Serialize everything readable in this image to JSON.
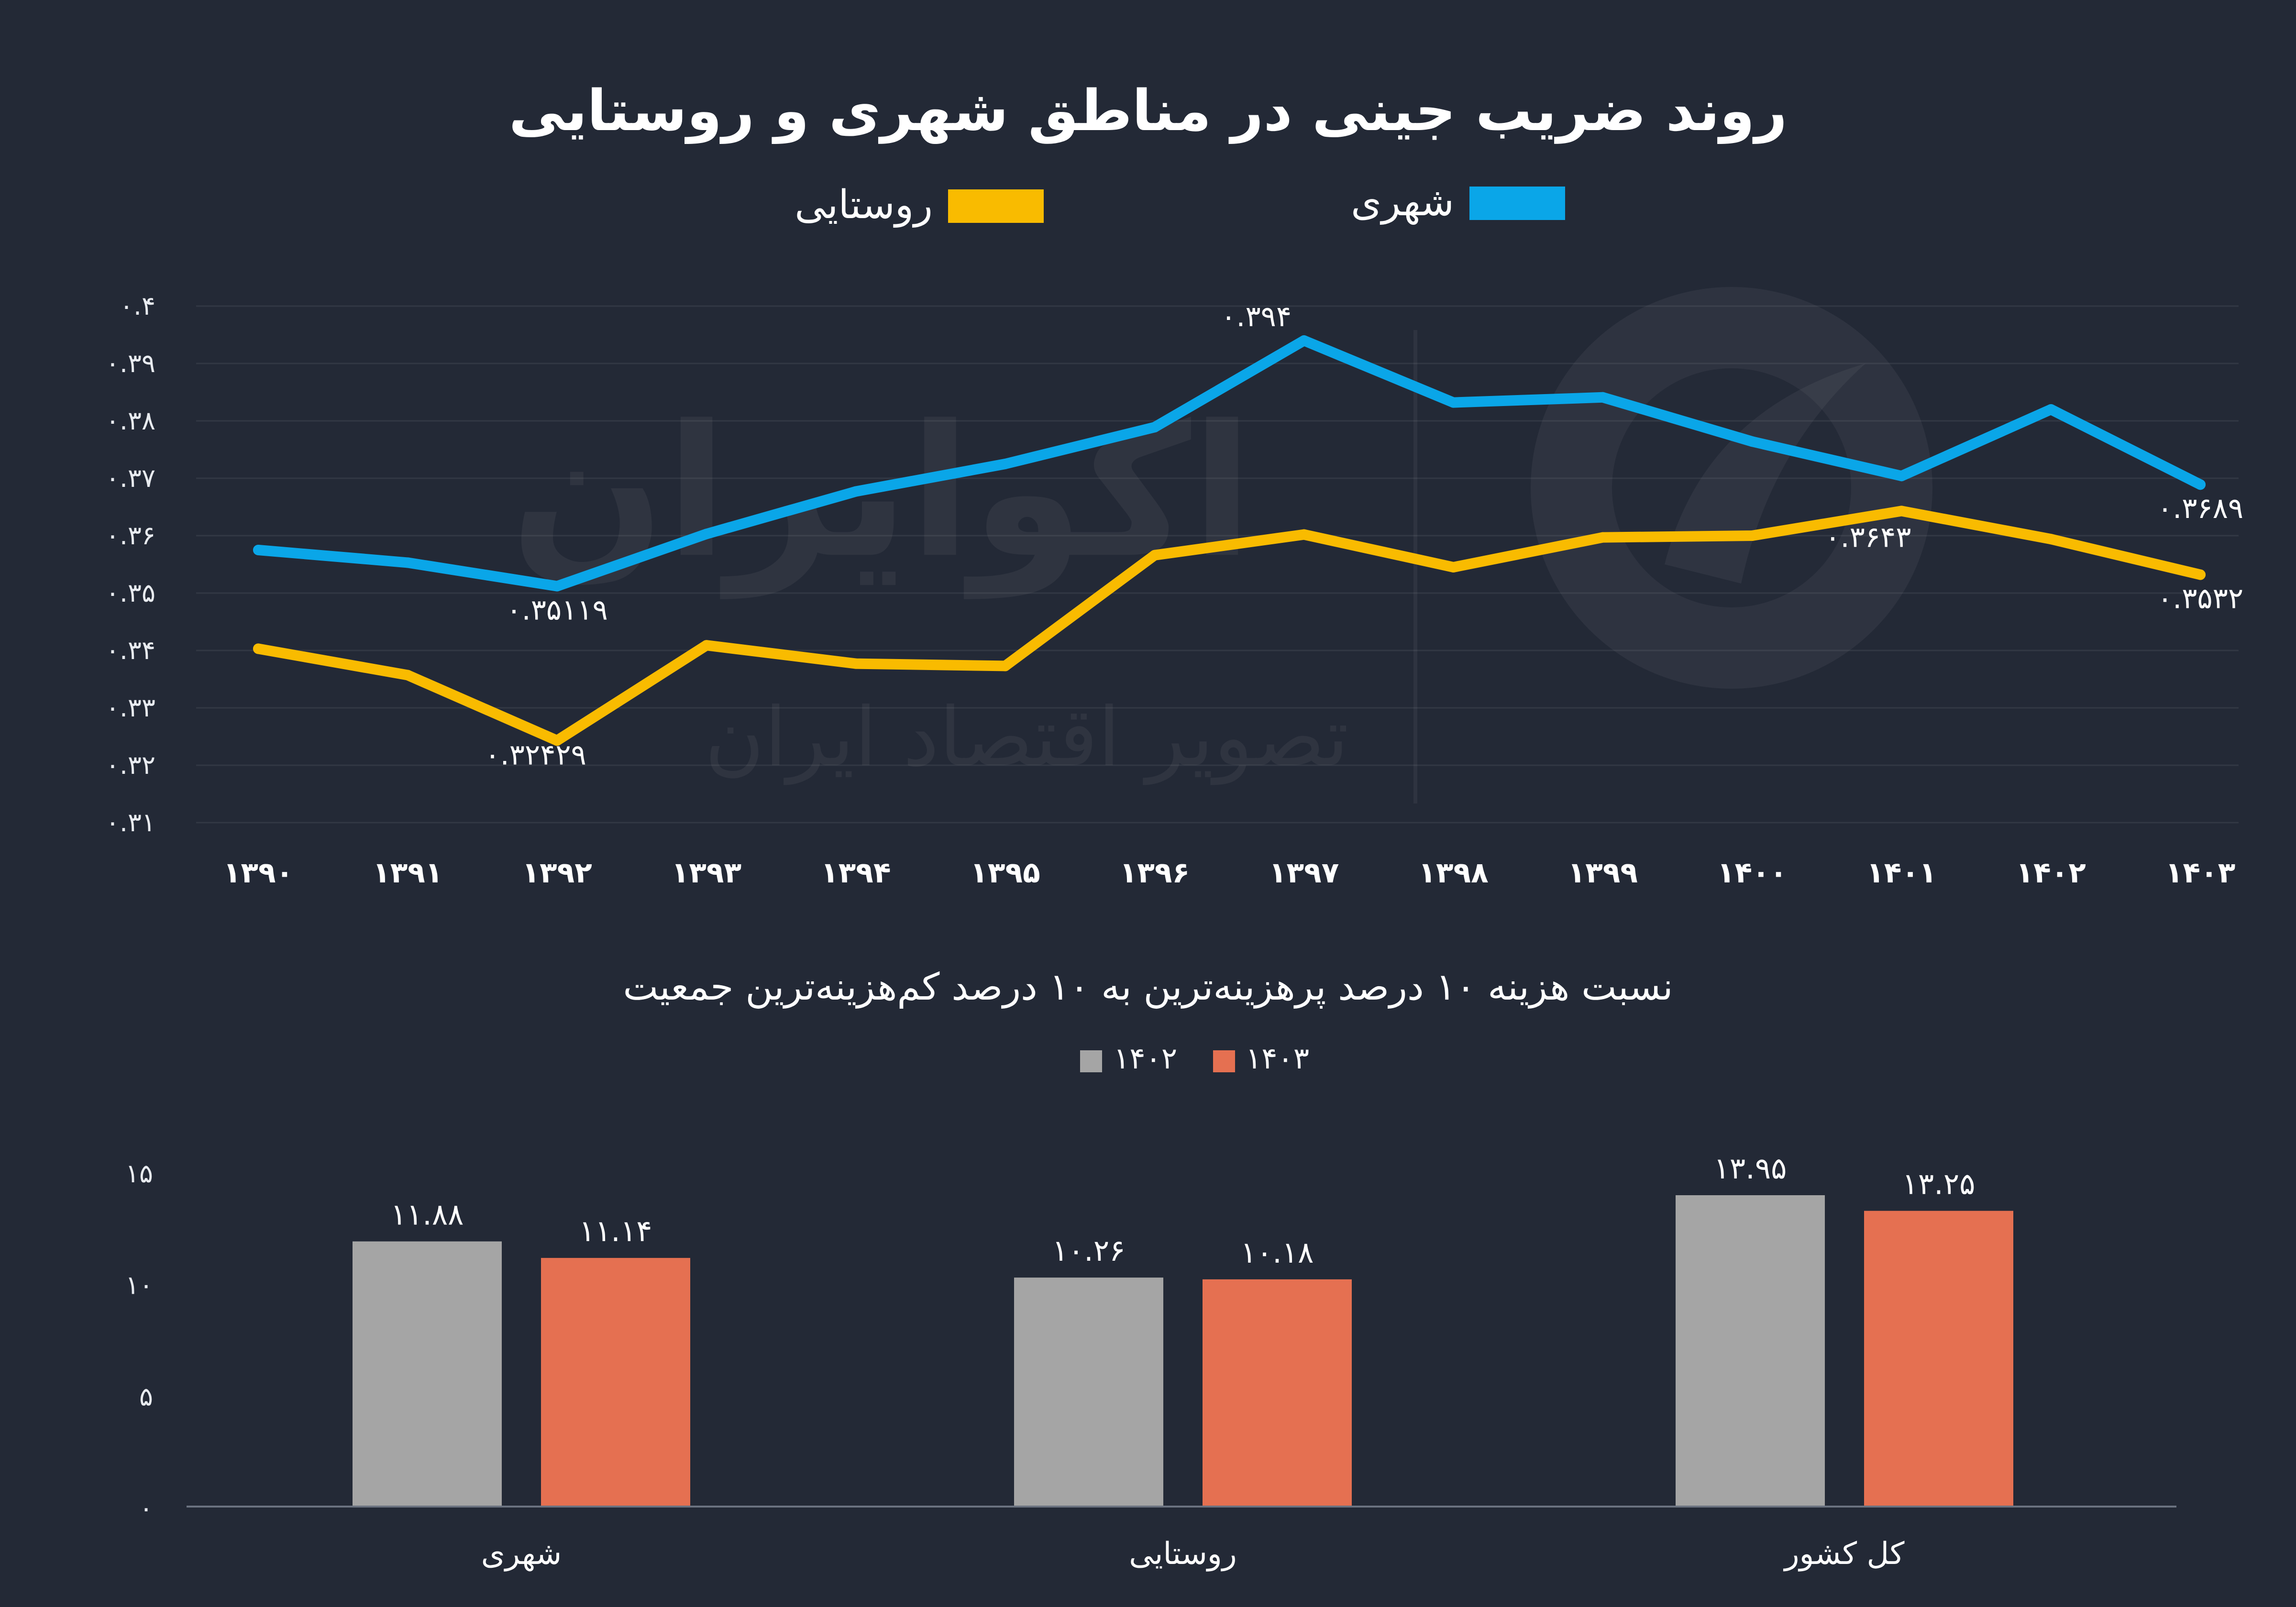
{
  "line_legend": {
    "urban_label": "شهری",
    "rural_label": "روستایی"
  },
  "bar_legend": {
    "y1402_label": "۱۴۰۲",
    "y1403_label": "۱۴۰۳"
  },
  "watermark": {
    "brand": "اکوایران",
    "tagline": "تصویر اقتصاد ایران"
  },
  "chart_data": [
    {
      "type": "line",
      "title": "روند ضریب جینی در مناطق شهری و روستایی",
      "categories": [
        "۱۳۹۰",
        "۱۳۹۱",
        "۱۳۹۲",
        "۱۳۹۳",
        "۱۳۹۴",
        "۱۳۹۵",
        "۱۳۹۶",
        "۱۳۹۷",
        "۱۳۹۸",
        "۱۳۹۹",
        "۱۴۰۰",
        "۱۴۰۱",
        "۱۴۰۲",
        "۱۴۰۳"
      ],
      "series": [
        {
          "name": "شهری",
          "color": "#0aa6e8",
          "values": [
            0.3575,
            0.3553,
            0.3512,
            0.3603,
            0.3677,
            0.3725,
            0.3789,
            0.394,
            0.3832,
            0.3841,
            0.3764,
            0.3704,
            0.382,
            0.3689
          ]
        },
        {
          "name": "روستایی",
          "color": "#f9bb00",
          "values": [
            0.3403,
            0.3357,
            0.3243,
            0.3409,
            0.3377,
            0.3373,
            0.3566,
            0.3602,
            0.3545,
            0.3597,
            0.36,
            0.3643,
            0.3594,
            0.3532
          ]
        }
      ],
      "annotations": [
        {
          "series": 0,
          "index": 2,
          "text": "۰.۳۵۱۱۹"
        },
        {
          "series": 0,
          "index": 7,
          "text": "۰.۳۹۴"
        },
        {
          "series": 0,
          "index": 13,
          "text": "۰.۳۶۸۹"
        },
        {
          "series": 1,
          "index": 2,
          "text": "۰.۳۲۴۲۹"
        },
        {
          "series": 1,
          "index": 11,
          "text": "۰.۳۶۴۳"
        },
        {
          "series": 1,
          "index": 13,
          "text": "۰.۳۵۳۲"
        }
      ],
      "ylim": [
        0.31,
        0.4
      ],
      "yticks": [
        {
          "value": 0.4,
          "label": "۰.۴"
        },
        {
          "value": 0.39,
          "label": "۰.۳۹"
        },
        {
          "value": 0.38,
          "label": "۰.۳۸"
        },
        {
          "value": 0.37,
          "label": "۰.۳۷"
        },
        {
          "value": 0.36,
          "label": "۰.۳۶"
        },
        {
          "value": 0.35,
          "label": "۰.۳۵"
        },
        {
          "value": 0.34,
          "label": "۰.۳۴"
        },
        {
          "value": 0.33,
          "label": "۰.۳۳"
        },
        {
          "value": 0.32,
          "label": "۰.۳۲"
        },
        {
          "value": 0.31,
          "label": "۰.۳۱"
        }
      ],
      "grid": true,
      "legend": "top-center"
    },
    {
      "type": "bar",
      "title": "نسبت هزینه ۱۰ درصد پرهزینه‌ترین به ۱۰ درصد کم‌هزینه‌ترین جمعیت",
      "categories": [
        "شهری",
        "روستایی",
        "کل کشور"
      ],
      "series": [
        {
          "name": "۱۴۰۲",
          "color": "#a5a5a5",
          "values": [
            11.88,
            10.26,
            13.95
          ],
          "labels": [
            "۱۱.۸۸",
            "۱۰.۲۶",
            "۱۳.۹۵"
          ]
        },
        {
          "name": "۱۴۰۳",
          "color": "#e57051",
          "values": [
            11.14,
            10.18,
            13.25
          ],
          "labels": [
            "۱۱.۱۴",
            "۱۰.۱۸",
            "۱۳.۲۵"
          ]
        }
      ],
      "ylim": [
        0,
        15
      ],
      "yticks": [
        {
          "value": 15,
          "label": "۱۵"
        },
        {
          "value": 10,
          "label": "۱۰"
        },
        {
          "value": 5,
          "label": "۵"
        },
        {
          "value": 0,
          "label": "۰"
        }
      ],
      "grid": false,
      "legend": "top-center"
    }
  ]
}
